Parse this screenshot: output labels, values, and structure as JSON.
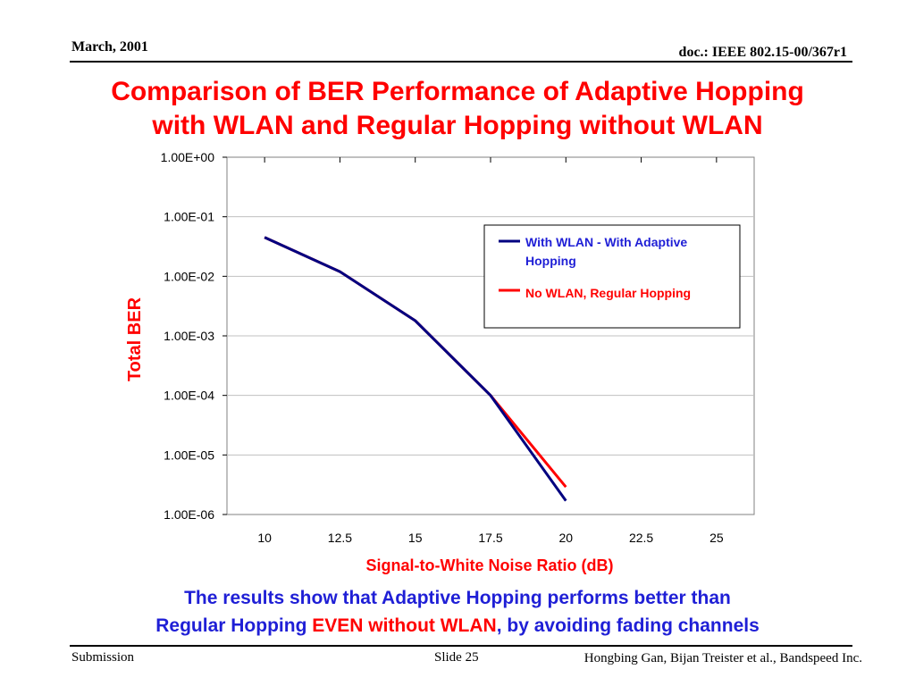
{
  "header": {
    "date": "March, 2001",
    "doc_id": "doc.: IEEE 802.15-00/367r1"
  },
  "slide_title": {
    "line1": "Comparison of BER Performance of Adaptive Hopping",
    "line2": "with WLAN and Regular Hopping without WLAN"
  },
  "conclusion": {
    "line1": "The results show that Adaptive Hopping performs better than",
    "line2_a": "Regular Hopping ",
    "line2_b": "EVEN without WLAN",
    "line2_c": ", by avoiding fading channels"
  },
  "footer": {
    "left": "Submission",
    "center": "Slide 25",
    "right": "Hongbing Gan, Bijan Treister et al., Bandspeed Inc."
  },
  "colors": {
    "title": "#ff0000",
    "axis_label": "#ff0000",
    "conclusion": "#1f1fd6",
    "series_with_wlan": "#000080",
    "series_no_wlan": "#ff0000"
  },
  "chart_data": {
    "type": "line",
    "title": "",
    "xlabel": "Signal-to-White Noise Ratio (dB)",
    "ylabel": "Total BER",
    "y_scale": "log",
    "xlim": [
      8.75,
      26.25
    ],
    "ylim": [
      1e-06,
      1
    ],
    "x_ticks": [
      "10",
      "12.5",
      "15",
      "17.5",
      "20",
      "22.5",
      "25"
    ],
    "y_ticks": [
      "1.00E+00",
      "1.00E-01",
      "1.00E-02",
      "1.00E-03",
      "1.00E-04",
      "1.00E-05",
      "1.00E-06"
    ],
    "grid": "horizontal",
    "legend_position": "top-right",
    "series": [
      {
        "name": "With WLAN - With Adaptive Hopping",
        "x": [
          10,
          12.5,
          15,
          17.5,
          20
        ],
        "y": [
          0.045,
          0.012,
          0.0018,
          0.0001,
          1.7e-06
        ]
      },
      {
        "name": "No WLAN, Regular Hopping",
        "x": [
          10,
          12.5,
          15,
          17.5,
          20
        ],
        "y": [
          0.045,
          0.012,
          0.0018,
          0.0001,
          2.9e-06
        ]
      }
    ]
  }
}
